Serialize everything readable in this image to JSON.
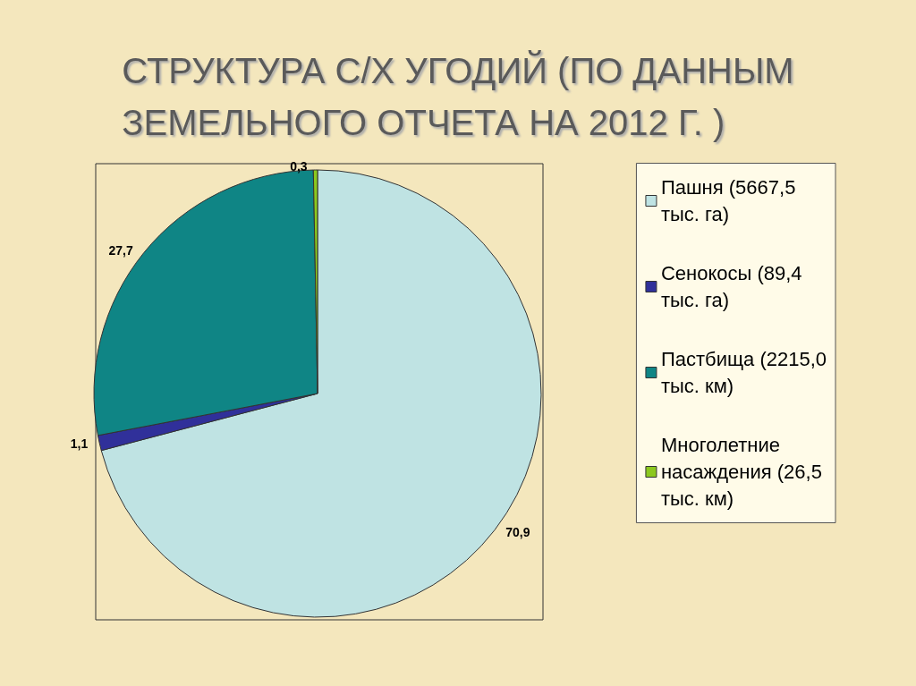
{
  "chart_data": {
    "type": "pie",
    "title": "СТРУКТУРА С/Х УГОДИЙ (ПО ДАННЫМ ЗЕМЕЛЬНОГО ОТЧЕТА НА 2012 Г. )",
    "categories": [
      "Пашня (5667,5 тыс. га)",
      "Сенокосы (89,4 тыс. га)",
      "Пастбища (2215,0 тыс. км)",
      "Многолетние насаждения (26,5 тыс. км)"
    ],
    "values": [
      70.9,
      1.1,
      27.7,
      0.3
    ],
    "value_labels": [
      "70,9",
      "1,1",
      "27,7",
      "0,3"
    ],
    "colors": [
      "#bfe3e3",
      "#30309a",
      "#0f8585",
      "#8cc81e"
    ],
    "legend": "right"
  }
}
